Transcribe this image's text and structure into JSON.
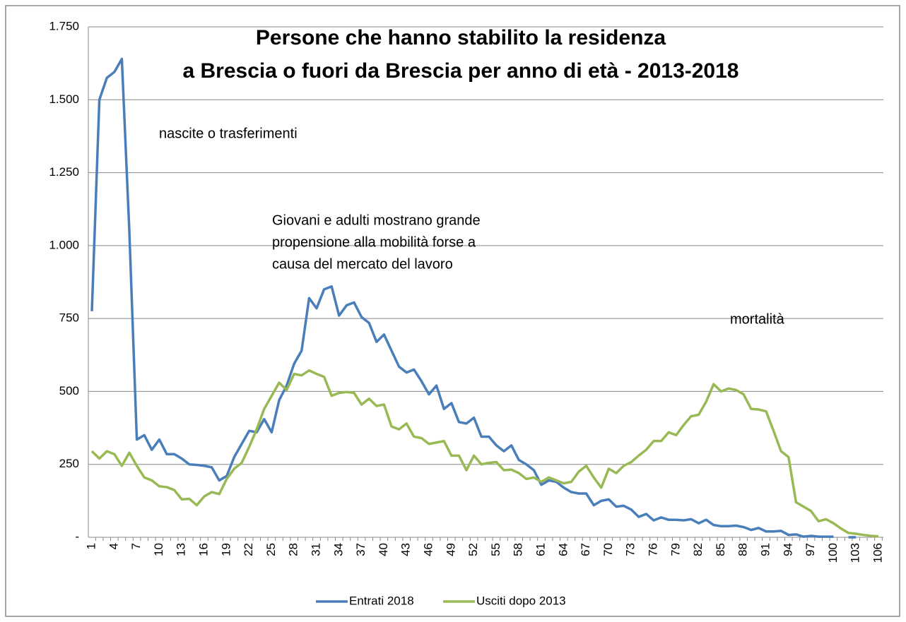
{
  "chart_data": {
    "type": "line",
    "title": "Persone che hanno stabilito la residenza",
    "subtitle": "a Brescia o fuori da Brescia per anno di età - 2013-2018",
    "annotations": [
      [
        "nascite o trasferimenti"
      ],
      [
        "Giovani e adulti mostrano grande",
        "propensione alla mobilità forse a",
        "causa del mercato del lavoro"
      ],
      [
        "mortalità"
      ]
    ],
    "categories": [
      "1",
      null,
      null,
      "4",
      null,
      null,
      "7",
      null,
      null,
      "10",
      null,
      null,
      "13",
      null,
      null,
      "16",
      null,
      null,
      "19",
      null,
      null,
      "22",
      null,
      null,
      "25",
      null,
      null,
      "28",
      null,
      null,
      "31",
      null,
      null,
      "34",
      null,
      null,
      "37",
      null,
      null,
      "40",
      null,
      null,
      "43",
      null,
      null,
      "46",
      null,
      null,
      "49",
      null,
      null,
      "52",
      null,
      null,
      "55",
      null,
      null,
      "58",
      null,
      null,
      "61",
      null,
      null,
      "64",
      null,
      null,
      "67",
      null,
      null,
      "70",
      null,
      null,
      "73",
      null,
      null,
      "76",
      null,
      null,
      "79",
      null,
      null,
      "82",
      null,
      null,
      "85",
      null,
      null,
      "88",
      null,
      null,
      "91",
      null,
      null,
      "94",
      null,
      null,
      "97",
      null,
      null,
      "100",
      null,
      null,
      "103",
      null,
      null,
      "106"
    ],
    "series": [
      {
        "name": "Entrati 2018",
        "color": "#4a7ebb",
        "values": [
          775,
          1500,
          1575,
          1595,
          1640,
          1050,
          335,
          350,
          300,
          335,
          285,
          285,
          270,
          250,
          248,
          245,
          240,
          195,
          210,
          275,
          320,
          365,
          360,
          405,
          360,
          470,
          520,
          595,
          640,
          820,
          785,
          850,
          860,
          760,
          795,
          805,
          755,
          735,
          670,
          695,
          640,
          585,
          565,
          575,
          535,
          490,
          520,
          440,
          460,
          395,
          390,
          410,
          345,
          345,
          315,
          295,
          315,
          265,
          250,
          230,
          180,
          195,
          190,
          170,
          155,
          150,
          150,
          110,
          125,
          130,
          105,
          108,
          95,
          70,
          80,
          58,
          68,
          60,
          60,
          58,
          62,
          48,
          60,
          42,
          38,
          38,
          40,
          35,
          25,
          32,
          20,
          20,
          22,
          8,
          10,
          2,
          5,
          2,
          2,
          2,
          null,
          0,
          0,
          null,
          null,
          null
        ]
      },
      {
        "name": "Usciti dopo 2013",
        "color": "#98b954",
        "values": [
          295,
          270,
          295,
          285,
          245,
          290,
          245,
          205,
          195,
          175,
          172,
          162,
          130,
          132,
          110,
          140,
          155,
          148,
          200,
          235,
          255,
          310,
          370,
          440,
          485,
          530,
          505,
          560,
          555,
          572,
          560,
          550,
          485,
          495,
          498,
          495,
          455,
          475,
          450,
          455,
          380,
          370,
          390,
          345,
          340,
          320,
          325,
          330,
          280,
          280,
          230,
          280,
          250,
          255,
          258,
          230,
          232,
          220,
          200,
          205,
          190,
          205,
          195,
          185,
          190,
          225,
          245,
          205,
          170,
          235,
          220,
          245,
          258,
          280,
          300,
          330,
          330,
          360,
          350,
          385,
          415,
          420,
          465,
          525,
          500,
          510,
          505,
          490,
          440,
          438,
          432,
          365,
          295,
          275,
          120,
          105,
          90,
          55,
          62,
          48,
          30,
          15,
          12,
          8,
          5,
          3
        ]
      }
    ],
    "ylim": [
      0,
      1750
    ],
    "yticks": [
      {
        "value": 0,
        "label": "-"
      },
      250,
      500,
      750,
      {
        "value": 1000,
        "label": "1.000"
      },
      {
        "value": 1250,
        "label": "1.250"
      },
      {
        "value": 1500,
        "label": "1.500"
      },
      {
        "value": 1750,
        "label": "1.750"
      }
    ],
    "grid": true,
    "legend": "bottom"
  }
}
